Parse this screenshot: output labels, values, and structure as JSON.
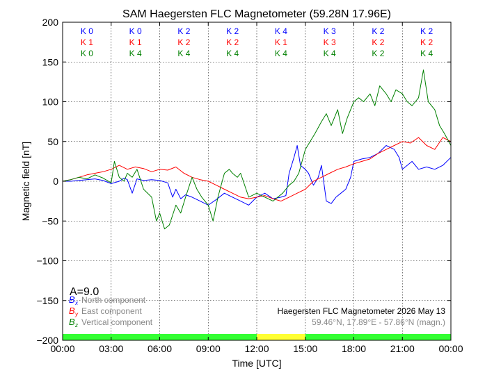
{
  "chart_data": {
    "type": "line",
    "title": "SAM Haegersten FLC Magnetometer (59.28N 17.96E)",
    "xlabel": "Time [UTC]",
    "ylabel": "Magnetic field [nT]",
    "xlim": [
      0,
      24
    ],
    "ylim": [
      -200,
      200
    ],
    "x_ticks": [
      0,
      3,
      6,
      9,
      12,
      15,
      18,
      21,
      24
    ],
    "x_tick_labels": [
      "00:00",
      "03:00",
      "06:00",
      "09:00",
      "12:00",
      "15:00",
      "18:00",
      "21:00",
      "00:00"
    ],
    "y_ticks": [
      -200,
      -150,
      -100,
      -50,
      0,
      50,
      100,
      150,
      200
    ],
    "y_tick_labels": [
      "−200",
      "−150",
      "−100",
      "−50",
      "0",
      "50",
      "100",
      "150",
      "200"
    ],
    "grid": true,
    "legend_position": "bottom-left",
    "colors": {
      "x": "#0000ff",
      "y": "#ff0000",
      "z": "#008000",
      "status_green": "#33ff33",
      "status_yellow": "#ffff33"
    },
    "activity_index": "A=9.0",
    "k_indices": [
      {
        "x": "K 0",
        "y": "K 1",
        "z": "K 0"
      },
      {
        "x": "K 0",
        "y": "K 1",
        "z": "K 4"
      },
      {
        "x": "K 2",
        "y": "K 2",
        "z": "K 4"
      },
      {
        "x": "K 2",
        "y": "K 2",
        "z": "K 4"
      },
      {
        "x": "K 4",
        "y": "K 1",
        "z": "K 4"
      },
      {
        "x": "K 3",
        "y": "K 3",
        "z": "K 4"
      },
      {
        "x": "K 2",
        "y": "K 2",
        "z": "K 2"
      },
      {
        "x": "K 2",
        "y": "K 2",
        "z": "K 4"
      }
    ],
    "status_bar": [
      {
        "from": 0,
        "to": 12,
        "level": "green"
      },
      {
        "from": 12,
        "to": 15,
        "level": "yellow"
      },
      {
        "from": 15,
        "to": 24,
        "level": "green"
      }
    ],
    "legend": [
      {
        "symbol": "B",
        "sub": "x",
        "label": "North component",
        "key": "x"
      },
      {
        "symbol": "B",
        "sub": "y",
        "label": "East component",
        "key": "y"
      },
      {
        "symbol": "B",
        "sub": "z",
        "label": "Vertical component",
        "key": "z"
      }
    ],
    "info_line1": "Haegersten FLC Magnetometer 2026 May 13",
    "info_line2": "59.46°N, 17.89°E - 57.86°N (magn.)",
    "series": [
      {
        "name": "North component",
        "key": "x",
        "x": [
          0,
          0.5,
          1.0,
          1.5,
          2.0,
          2.5,
          3.0,
          3.5,
          3.8,
          4.0,
          4.3,
          4.6,
          5.0,
          5.5,
          6.0,
          6.5,
          6.8,
          7.0,
          7.3,
          7.6,
          8.0,
          8.5,
          9.0,
          9.5,
          10.0,
          10.5,
          11.0,
          11.5,
          12.0,
          12.5,
          13.0,
          13.5,
          13.8,
          14.0,
          14.3,
          14.5,
          14.7,
          15.0,
          15.2,
          15.5,
          15.8,
          16.0,
          16.3,
          16.6,
          16.9,
          17.2,
          17.5,
          17.8,
          18.0,
          18.5,
          19.0,
          19.5,
          20.0,
          20.5,
          20.8,
          21.0,
          21.3,
          21.6,
          22.0,
          22.5,
          23.0,
          23.5,
          24.0
        ],
        "y": [
          0,
          0,
          1,
          2,
          3,
          1,
          -3,
          0,
          4,
          2,
          -15,
          3,
          1,
          2,
          1,
          -2,
          -20,
          -10,
          -22,
          -17,
          -20,
          -25,
          -30,
          -23,
          -15,
          -20,
          -25,
          -30,
          -20,
          -15,
          -22,
          -20,
          -18,
          10,
          30,
          45,
          20,
          15,
          10,
          -5,
          5,
          20,
          -25,
          -28,
          -20,
          -15,
          -10,
          5,
          25,
          28,
          30,
          35,
          45,
          40,
          30,
          15,
          20,
          25,
          15,
          18,
          15,
          20,
          30
        ]
      },
      {
        "name": "East component",
        "key": "y",
        "x": [
          0,
          0.5,
          1.0,
          1.5,
          2.0,
          2.5,
          3.0,
          3.5,
          4.0,
          4.5,
          5.0,
          5.5,
          6.0,
          6.5,
          7.0,
          7.5,
          8.0,
          8.5,
          9.0,
          9.5,
          10.0,
          10.5,
          11.0,
          11.5,
          12.0,
          12.5,
          13.0,
          13.5,
          14.0,
          14.5,
          15.0,
          15.5,
          16.0,
          16.5,
          17.0,
          17.5,
          18.0,
          18.5,
          19.0,
          19.5,
          20.0,
          20.5,
          21.0,
          21.5,
          22.0,
          22.5,
          23.0,
          23.5,
          24.0
        ],
        "y": [
          0,
          2,
          5,
          8,
          10,
          12,
          15,
          20,
          15,
          18,
          16,
          12,
          15,
          14,
          18,
          10,
          5,
          2,
          0,
          -5,
          -10,
          -15,
          -20,
          -22,
          -20,
          -18,
          -22,
          -25,
          -20,
          -15,
          -10,
          0,
          5,
          10,
          15,
          18,
          22,
          25,
          28,
          35,
          40,
          45,
          50,
          48,
          55,
          45,
          40,
          55,
          50
        ]
      },
      {
        "name": "Vertical component",
        "key": "z",
        "x": [
          0,
          0.5,
          1.0,
          1.5,
          2.0,
          2.5,
          3.0,
          3.2,
          3.5,
          3.8,
          4.0,
          4.3,
          4.6,
          5.0,
          5.5,
          5.8,
          6.0,
          6.3,
          6.6,
          7.0,
          7.3,
          7.6,
          8.0,
          8.3,
          8.6,
          9.0,
          9.3,
          9.6,
          10.0,
          10.3,
          10.5,
          10.8,
          11.0,
          11.5,
          12.0,
          12.5,
          13.0,
          13.3,
          13.6,
          14.0,
          14.3,
          14.6,
          15.0,
          15.3,
          15.6,
          16.0,
          16.3,
          16.6,
          17.0,
          17.3,
          17.6,
          18.0,
          18.3,
          18.6,
          19.0,
          19.3,
          19.6,
          20.0,
          20.3,
          20.6,
          21.0,
          21.3,
          21.6,
          22.0,
          22.3,
          22.6,
          23.0,
          23.3,
          23.6,
          24.0
        ],
        "y": [
          0,
          2,
          5,
          3,
          8,
          4,
          -2,
          25,
          5,
          0,
          10,
          5,
          15,
          -10,
          -20,
          -50,
          -40,
          -60,
          -55,
          -30,
          -40,
          -20,
          5,
          -10,
          -20,
          -30,
          -50,
          -20,
          10,
          15,
          10,
          5,
          10,
          -20,
          -15,
          -20,
          -25,
          -20,
          -15,
          -5,
          0,
          10,
          40,
          50,
          60,
          75,
          85,
          70,
          90,
          60,
          80,
          100,
          105,
          100,
          110,
          95,
          120,
          110,
          100,
          115,
          110,
          100,
          95,
          105,
          140,
          100,
          90,
          70,
          60,
          45
        ]
      }
    ]
  }
}
